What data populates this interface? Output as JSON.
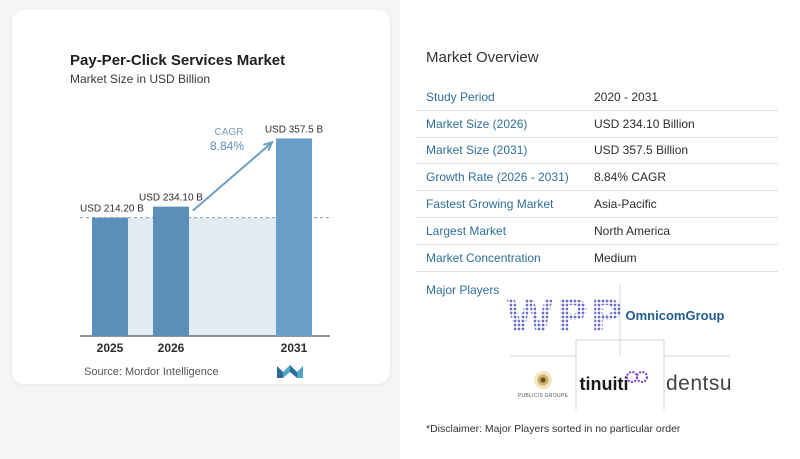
{
  "chart": {
    "title": "Pay-Per-Click Services Market",
    "subtitle": "Market Size in USD Billion",
    "cagr_label": "CAGR",
    "cagr_value": "8.84%",
    "source": "Source:  Mordor Intelligence"
  },
  "chart_data": {
    "type": "bar",
    "title": "Pay-Per-Click Services Market",
    "subtitle": "Market Size in USD Billion",
    "categories": [
      "2025",
      "2026",
      "2031"
    ],
    "values": [
      214.2,
      234.1,
      357.5
    ],
    "data_labels": [
      "USD 214.20 B",
      "USD 234.10 B",
      "USD 357.5 B"
    ],
    "ylim": [
      0,
      380
    ],
    "annotation": {
      "label": "CAGR",
      "value": "8.84%"
    },
    "colors": {
      "bar": "#5b8fb9",
      "bar_2031": "#6aa0c8",
      "shade": "#e3ecf4",
      "dashed": "#8a9bb0",
      "arrow": "#6c9fc4"
    }
  },
  "overview": {
    "title": "Market Overview",
    "rows": [
      {
        "key": "Study Period",
        "value": "2020 - 2031"
      },
      {
        "key": "Market Size (2026)",
        "value": "USD 234.10 Billion"
      },
      {
        "key": "Market Size (2031)",
        "value": "USD 357.5 Billion"
      },
      {
        "key": "Growth Rate (2026 - 2031)",
        "value": "8.84% CAGR"
      },
      {
        "key": "Fastest Growing Market",
        "value": "Asia-Pacific"
      },
      {
        "key": "Largest Market",
        "value": "North America"
      },
      {
        "key": "Market Concentration",
        "value": "Medium"
      }
    ],
    "players_label": "Major Players",
    "players": {
      "wpp": "WPP",
      "omnicom": "OmnicomGroup",
      "publicis": "PUBLICIS GROUPE",
      "tinuiti": "tinuiti",
      "dentsu": "dentsu"
    },
    "disclaimer": "*Disclaimer: Major Players sorted in no particular order"
  },
  "colors": {
    "accent": "#2f6f9a",
    "omnicom": "#1e5b8f",
    "wpp": "#6a6ec8",
    "tinuiti_dot": "#7b3fd1"
  }
}
